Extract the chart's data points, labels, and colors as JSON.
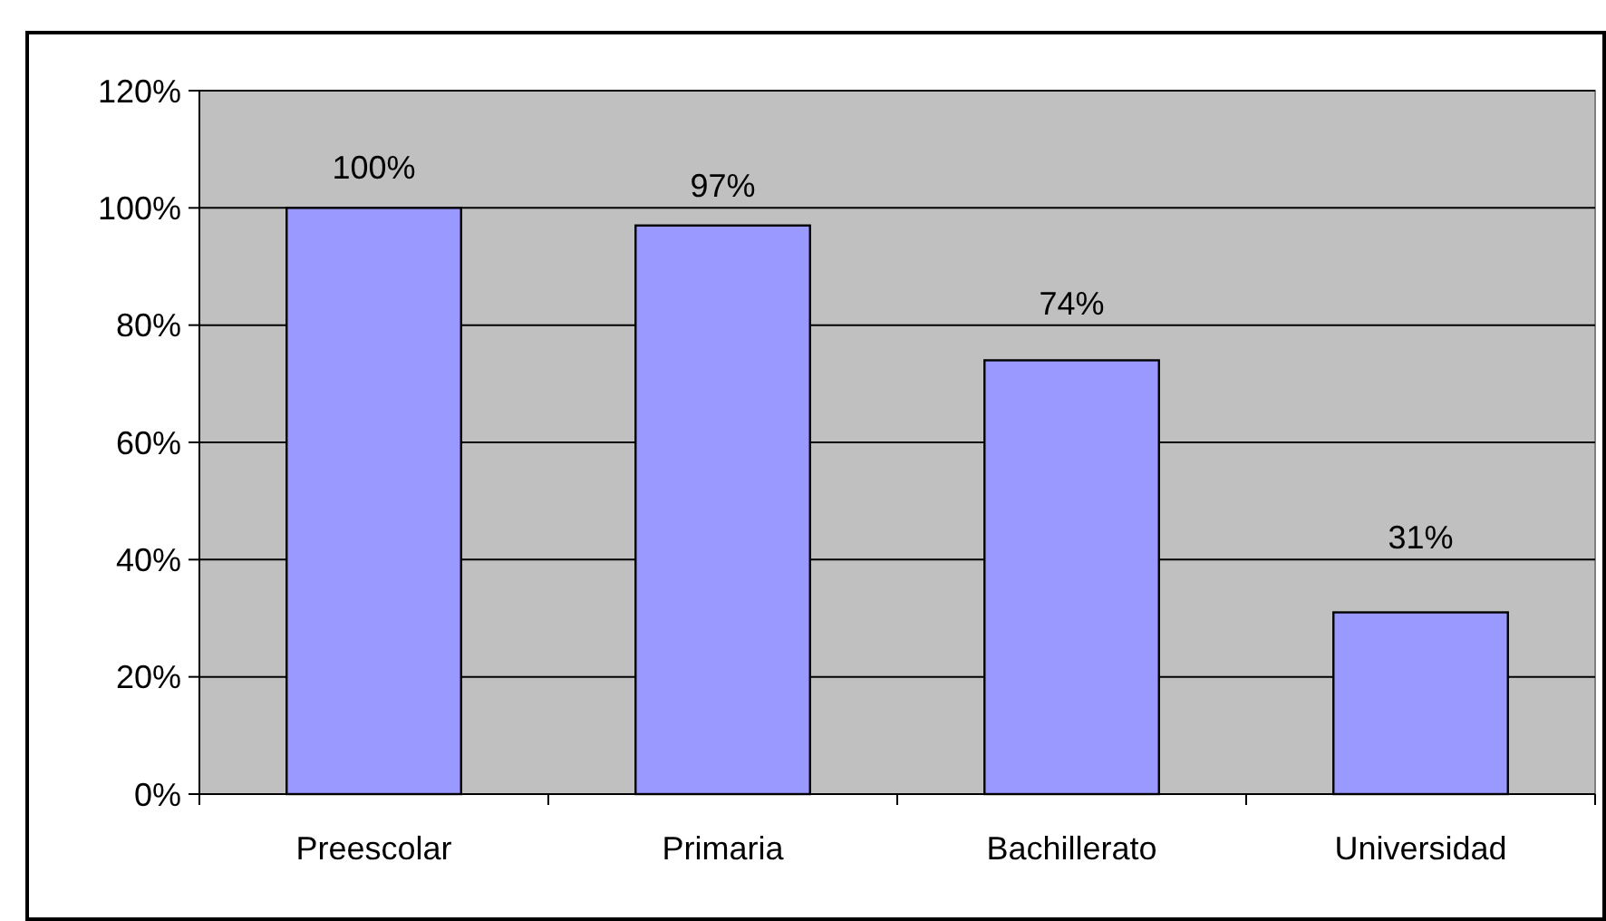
{
  "chart_data": {
    "type": "bar",
    "categories": [
      "Preescolar",
      "Primaria",
      "Bachillerato",
      "Universidad"
    ],
    "values": [
      100,
      97,
      74,
      31
    ],
    "color": "#9999ff",
    "value_labels": [
      "100%",
      "97%",
      "74%",
      "31%"
    ],
    "ylim": [
      0,
      120
    ],
    "yticks": [
      {
        "value": 0,
        "label": "0%"
      },
      {
        "value": 20,
        "label": "20%"
      },
      {
        "value": 40,
        "label": "40%"
      },
      {
        "value": 60,
        "label": "60%"
      },
      {
        "value": 80,
        "label": "80%"
      },
      {
        "value": 100,
        "label": "100%"
      },
      {
        "value": 120,
        "label": "120%"
      }
    ],
    "grid": "y"
  }
}
